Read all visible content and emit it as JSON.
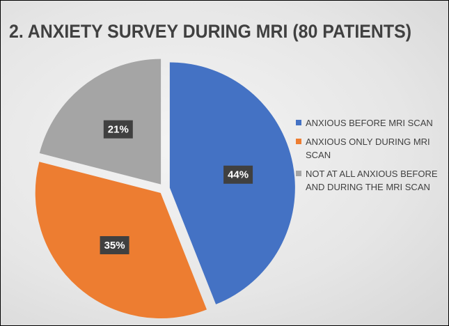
{
  "chart_data": {
    "type": "pie",
    "title": "2. ANXIETY SURVEY DURING MRI (80 PATIENTS)",
    "categories": [
      "ANXIOUS BEFORE MRI SCAN",
      "ANXIOUS ONLY DURING MRI SCAN",
      "NOT AT ALL ANXIOUS BEFORE AND DURING THE MRI SCAN"
    ],
    "values": [
      44,
      35,
      21
    ],
    "value_labels": [
      "44%",
      "35%",
      "21%"
    ],
    "colors": [
      "#4472c4",
      "#ed7d31",
      "#a5a5a5"
    ],
    "legend": "right"
  }
}
